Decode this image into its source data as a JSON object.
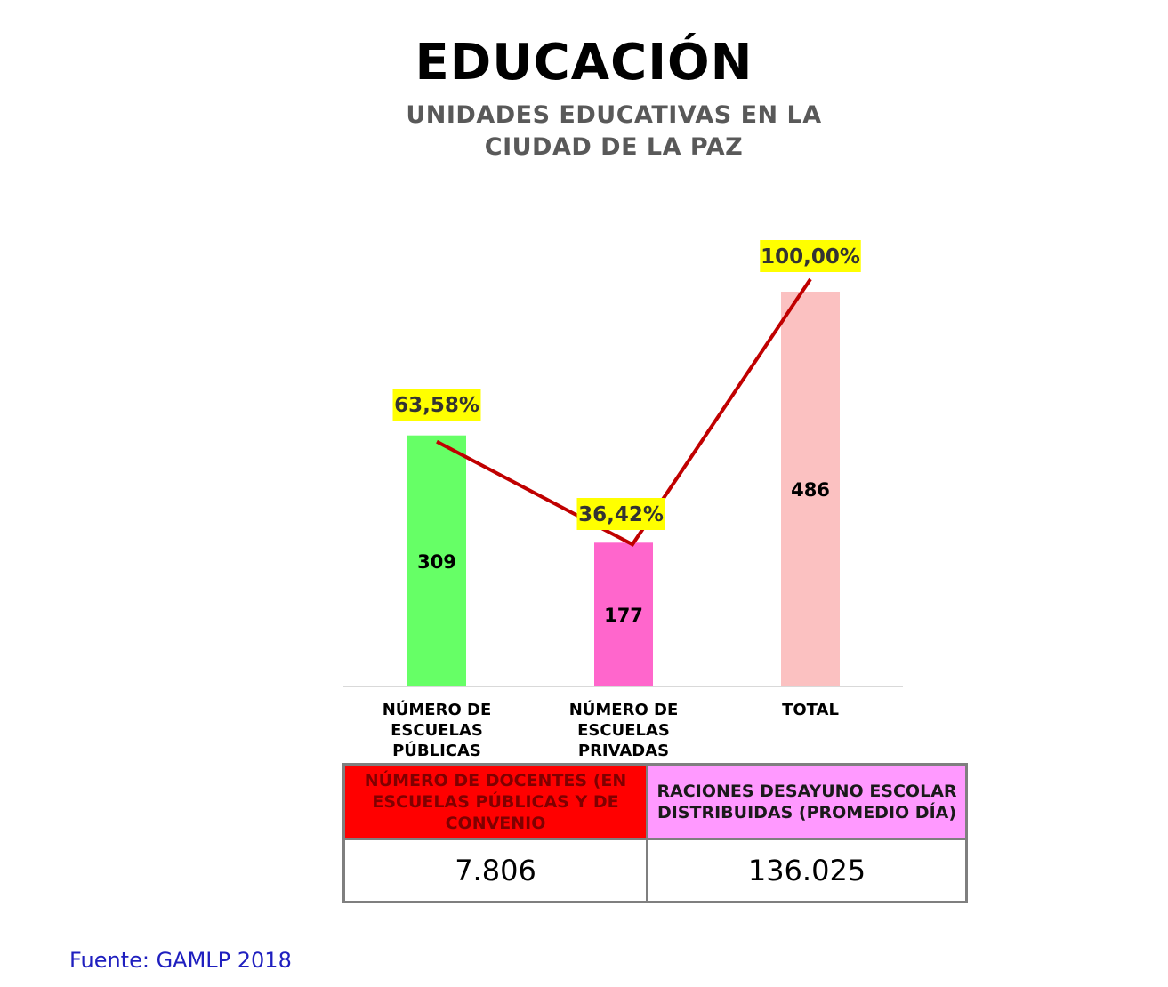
{
  "title": "EDUCACIÓN",
  "subtitle": [
    "UNIDADES EDUCATIVAS EN LA",
    "CIUDAD DE LA PAZ"
  ],
  "chart_data": {
    "type": "bar",
    "categories": [
      [
        "NÚMERO DE",
        "ESCUELAS",
        "PÚBLICAS"
      ],
      [
        "NÚMERO DE",
        "ESCUELAS",
        "PRIVADAS"
      ],
      [
        "TOTAL"
      ]
    ],
    "values": [
      309,
      177,
      486
    ],
    "value_labels": [
      "309",
      "177",
      "486"
    ],
    "bar_colors": [
      "#66ff66",
      "#ff66cc",
      "#fbc1c1"
    ],
    "percentages": [
      63.58,
      36.42,
      100.0
    ],
    "percentage_labels": [
      "63,58%",
      "36,42%",
      "100,00%"
    ],
    "line_color": "#c00000",
    "label_highlight": "#ffff00",
    "ylim": [
      0,
      486
    ]
  },
  "table": {
    "headers": [
      "NÚMERO DE DOCENTES (EN ESCUELAS PÚBLICAS Y DE CONVENIO",
      "RACIONES DESAYUNO ESCOLAR DISTRIBUIDAS (PROMEDIO DÍA)"
    ],
    "values": [
      "7.806",
      "136.025"
    ],
    "header_colors": [
      "#ff0000",
      "#ff99ff"
    ]
  },
  "source": "Fuente: GAMLP 2018"
}
